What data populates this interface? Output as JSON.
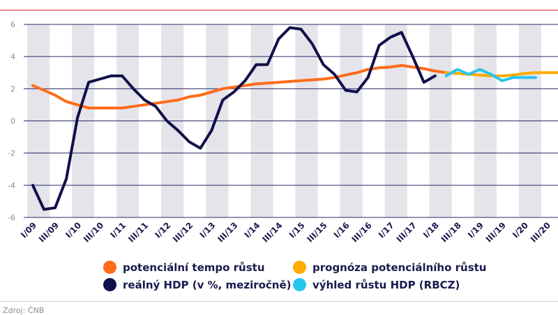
{
  "chart_data": {
    "type": "line",
    "title": "",
    "xlabel": "",
    "ylabel": "",
    "ylim": [
      -6,
      6
    ],
    "yticks": [
      6,
      4,
      2,
      0,
      -2,
      -4,
      -6
    ],
    "grid": true,
    "categories": [
      "I/09",
      "II/09",
      "III/09",
      "IV/09",
      "I/10",
      "II/10",
      "III/10",
      "IV/10",
      "I/11",
      "II/11",
      "III/11",
      "IV/11",
      "I/12",
      "II/12",
      "III/12",
      "IV/12",
      "I/13",
      "II/13",
      "III/13",
      "IV/13",
      "I/14",
      "II/14",
      "III/14",
      "IV/14",
      "I/15",
      "II/15",
      "III/15",
      "IV/15",
      "I/16",
      "II/16",
      "III/16",
      "IV/16",
      "I/17",
      "II/17",
      "III/17",
      "IV/17",
      "I/18",
      "II/18",
      "III/18",
      "IV/18",
      "I/19",
      "II/19",
      "III/19",
      "IV/19",
      "I/20",
      "II/20",
      "III/20",
      "IV/20"
    ],
    "tick_labels": [
      "I/09",
      "III/09",
      "I/10",
      "III/10",
      "I/11",
      "III/11",
      "I/12",
      "III/12",
      "I/13",
      "III/13",
      "I/14",
      "III/14",
      "I/15",
      "III/15",
      "I/16",
      "III/16",
      "I/17",
      "III/17",
      "I/18",
      "III/18",
      "I/19",
      "III/19",
      "I/20",
      "III/20"
    ],
    "series": [
      {
        "name": "potenciální tempo růstu",
        "color": "#ff6b1a",
        "values": [
          2.2,
          1.9,
          1.6,
          1.2,
          1.0,
          0.8,
          0.8,
          0.8,
          0.8,
          0.9,
          1.0,
          1.1,
          1.2,
          1.3,
          1.5,
          1.6,
          1.8,
          2.0,
          2.1,
          2.2,
          2.3,
          2.35,
          2.4,
          2.45,
          2.5,
          2.55,
          2.6,
          2.7,
          2.85,
          3.0,
          3.2,
          3.3,
          3.35,
          3.45,
          3.35,
          3.25,
          3.1,
          3.0,
          null,
          null,
          null,
          null,
          null,
          null,
          null,
          null,
          null,
          null
        ]
      },
      {
        "name": "reálný HDP (v %, meziročně)",
        "color": "#10104a",
        "values": [
          -4.0,
          -5.5,
          -5.4,
          -3.6,
          0.2,
          2.4,
          2.6,
          2.8,
          2.8,
          2.0,
          1.3,
          0.9,
          0.0,
          -0.6,
          -1.3,
          -1.7,
          -0.6,
          1.3,
          1.8,
          2.5,
          3.5,
          3.5,
          5.1,
          5.8,
          5.7,
          4.8,
          3.5,
          2.9,
          1.9,
          1.8,
          2.7,
          4.7,
          5.2,
          5.5,
          4.0,
          2.4,
          2.8,
          null,
          null,
          null,
          null,
          null,
          null,
          null,
          null,
          null,
          null,
          null
        ]
      },
      {
        "name": "prognóza potenciálního růstu",
        "color": "#ffab00",
        "values": [
          null,
          null,
          null,
          null,
          null,
          null,
          null,
          null,
          null,
          null,
          null,
          null,
          null,
          null,
          null,
          null,
          null,
          null,
          null,
          null,
          null,
          null,
          null,
          null,
          null,
          null,
          null,
          null,
          null,
          null,
          null,
          null,
          null,
          null,
          null,
          null,
          null,
          3.0,
          2.95,
          2.9,
          2.85,
          2.8,
          2.8,
          2.85,
          2.95,
          3.0,
          3.0,
          3.0
        ]
      },
      {
        "name": "výhled růstu HDP (RBCZ)",
        "color": "#27c6ef",
        "values": [
          null,
          null,
          null,
          null,
          null,
          null,
          null,
          null,
          null,
          null,
          null,
          null,
          null,
          null,
          null,
          null,
          null,
          null,
          null,
          null,
          null,
          null,
          null,
          null,
          null,
          null,
          null,
          null,
          null,
          null,
          null,
          null,
          null,
          null,
          null,
          null,
          null,
          2.8,
          3.2,
          2.9,
          3.2,
          2.9,
          2.5,
          2.7,
          2.7,
          2.7,
          null,
          null
        ]
      }
    ]
  },
  "legend": {
    "item1": "potenciální tempo růstu",
    "item2": "prognóza potenciálního růstu",
    "item3": "reálný HDP (v %, meziročně)",
    "item4": "výhled růstu HDP (RBCZ)"
  },
  "source": "Zdroj: ČNB"
}
